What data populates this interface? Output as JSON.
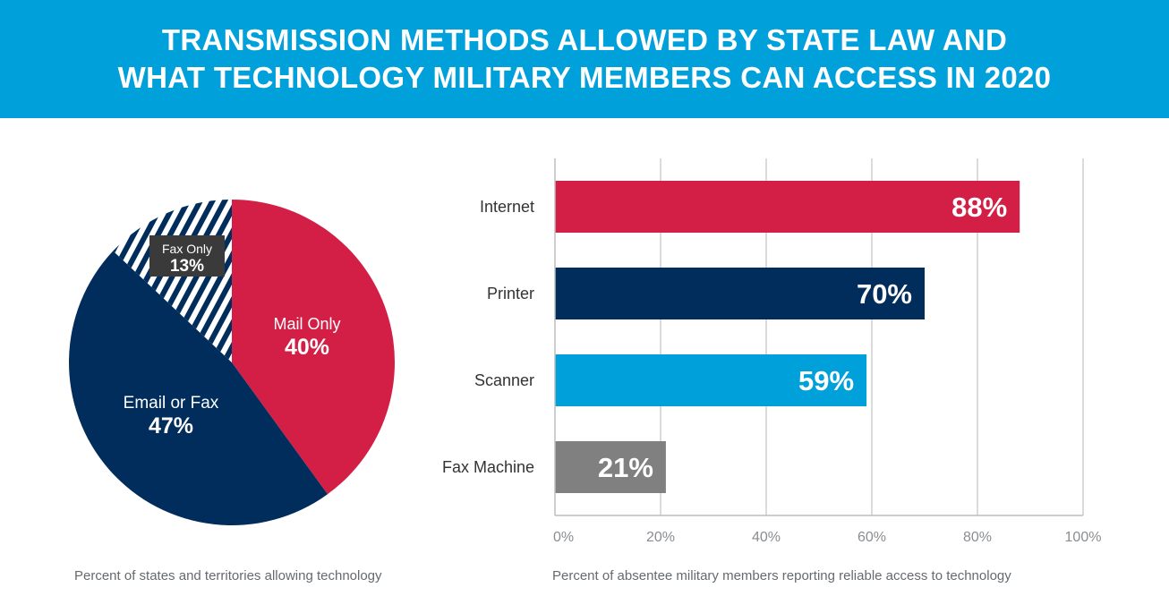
{
  "header": {
    "title_line1": "TRANSMISSION METHODS ALLOWED BY STATE LAW AND",
    "title_line2": "WHAT TECHNOLOGY MILITARY MEMBERS CAN ACCESS IN 2020",
    "background": "#00a0db"
  },
  "chart_data": [
    {
      "type": "pie",
      "caption": "Percent of states and territories allowing technology",
      "slices": [
        {
          "label": "Mail Only",
          "value": 40,
          "value_label": "40%",
          "color": "#d31f45"
        },
        {
          "label": "Email or Fax",
          "value": 47,
          "value_label": "47%",
          "color": "#002d5c"
        },
        {
          "label": "Fax Only",
          "value": 13,
          "value_label": "13%",
          "color": "#002d5c",
          "pattern": "diagonal-stripes"
        }
      ]
    },
    {
      "type": "bar",
      "orientation": "horizontal",
      "caption": "Percent of absentee military members reporting reliable access to technology",
      "categories": [
        "Internet",
        "Printer",
        "Scanner",
        "Fax Machine"
      ],
      "values": [
        88,
        70,
        59,
        21
      ],
      "value_labels": [
        "88%",
        "70%",
        "59%",
        "21%"
      ],
      "colors": [
        "#d31f45",
        "#002d5c",
        "#00a0db",
        "#808080"
      ],
      "xlim": [
        0,
        100
      ],
      "xticks": [
        "0%",
        "20%",
        "40%",
        "60%",
        "80%",
        "100%"
      ],
      "grid": true
    }
  ]
}
